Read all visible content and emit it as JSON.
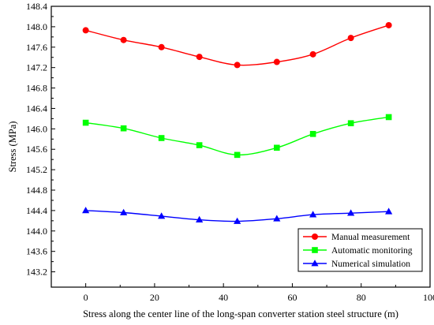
{
  "chart_data": {
    "type": "line",
    "xlabel": "Stress along the center line of the long-span converter station steel structure (m)",
    "ylabel": "Stress (MPa)",
    "xlim": [
      -10,
      100
    ],
    "ylim": [
      142.9,
      148.4
    ],
    "xticks": [
      0,
      20,
      40,
      60,
      80,
      100
    ],
    "yticks": [
      143.2,
      143.6,
      144.0,
      144.4,
      144.8,
      145.2,
      145.6,
      146.0,
      146.4,
      146.8,
      147.2,
      147.6,
      148.0,
      148.4
    ],
    "x": [
      0,
      11,
      22,
      33,
      44,
      55.5,
      66,
      77,
      88
    ],
    "legend_position": "bottom-right",
    "grid": false,
    "series": [
      {
        "name": "Manual measurement",
        "color": "#ff0000",
        "marker": "circle",
        "values": [
          147.93,
          147.74,
          147.6,
          147.41,
          147.25,
          147.31,
          147.46,
          147.78,
          148.03
        ]
      },
      {
        "name": "Automatic monitoring",
        "color": "#00ff00",
        "marker": "square",
        "values": [
          146.12,
          146.01,
          145.82,
          145.68,
          145.49,
          145.63,
          145.9,
          146.11,
          146.23
        ]
      },
      {
        "name": "Numerical simulation",
        "color": "#0000ff",
        "marker": "triangle",
        "values": [
          144.4,
          144.36,
          144.29,
          144.22,
          144.19,
          144.24,
          144.32,
          144.35,
          144.38
        ]
      }
    ]
  }
}
